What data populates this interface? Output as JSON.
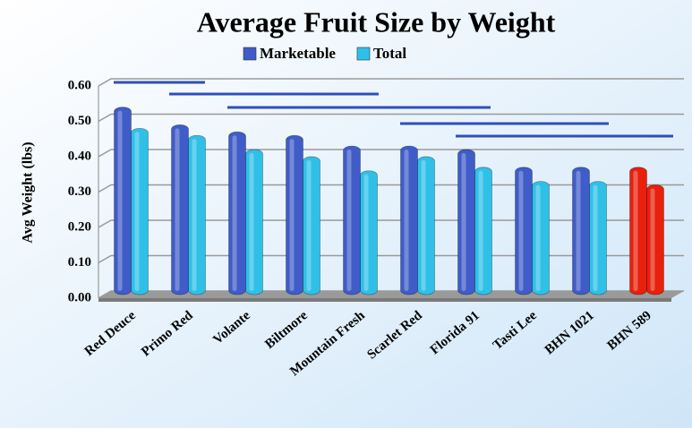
{
  "chart_data": {
    "type": "bar",
    "title": "Average Fruit Size by Weight",
    "y_label": "Avg Weight (lbs)",
    "categories": [
      "Red Deuce",
      "Primo Red",
      "Volante",
      "Biltmore",
      "Mountain Fresh",
      "Scarlet Red",
      "Florida 91",
      "Tasti Lee",
      "BHN 1021",
      "BHN 589"
    ],
    "series": [
      {
        "name": "Marketable",
        "color": "#3f5cc8",
        "colors": [
          "#3f5cc8",
          "#3f5cc8",
          "#3f5cc8",
          "#3f5cc8",
          "#3f5cc8",
          "#3f5cc8",
          "#3f5cc8",
          "#3f5cc8",
          "#3f5cc8",
          "#e8200c"
        ],
        "values": [
          0.53,
          0.48,
          0.46,
          0.45,
          0.42,
          0.42,
          0.41,
          0.36,
          0.36,
          0.36
        ]
      },
      {
        "name": "Total",
        "color": "#2fc0e8",
        "colors": [
          "#2fc0e8",
          "#2fc0e8",
          "#2fc0e8",
          "#2fc0e8",
          "#2fc0e8",
          "#2fc0e8",
          "#2fc0e8",
          "#2fc0e8",
          "#2fc0e8",
          "#e8200c"
        ],
        "values": [
          0.47,
          0.45,
          0.41,
          0.39,
          0.35,
          0.39,
          0.36,
          0.32,
          0.32,
          0.31
        ]
      }
    ],
    "ylim": [
      0,
      0.6
    ],
    "yticks": [
      {
        "value": 0,
        "label": "0.00"
      },
      {
        "value": 0.1,
        "label": "0.10"
      },
      {
        "value": 0.2,
        "label": "0.20"
      },
      {
        "value": 0.3,
        "label": "0.30"
      },
      {
        "value": 0.4,
        "label": "0.40"
      },
      {
        "value": 0.5,
        "label": "0.50"
      },
      {
        "value": 0.6,
        "label": "0.60"
      }
    ],
    "grid": true
  }
}
